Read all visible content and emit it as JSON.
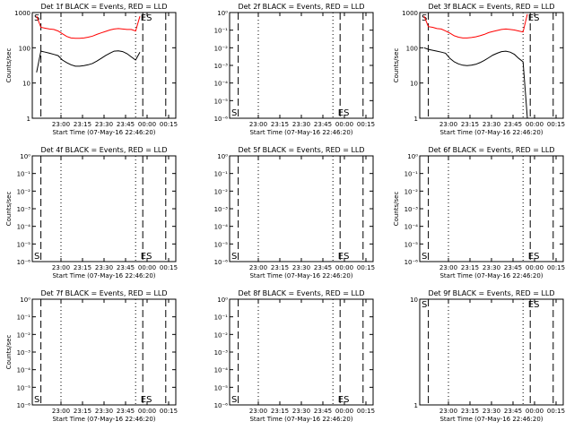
{
  "figure": {
    "background": "#ffffff",
    "ink": "#000000",
    "lld_color": "#ff0000"
  },
  "chart_data": [
    {
      "type": "line",
      "title": "Det 1f BLACK = Events, RED = LLD",
      "xlabel": "Start Time (07-May-16 22:46:20)",
      "ylabel": "Counts/sec",
      "x_ticks": [
        "23:00",
        "23:15",
        "23:30",
        "23:45",
        "00:00",
        "00:15"
      ],
      "y_scale": "log",
      "ylim": [
        1,
        1000
      ],
      "y_ticks": [
        "1",
        "10",
        "100",
        "1000"
      ],
      "markers": [
        "S",
        "ES"
      ],
      "has_data": true,
      "series": [
        {
          "color": "#ff0000",
          "values": [
            800,
            380,
            360,
            340,
            330,
            300,
            250,
            210,
            190,
            185,
            185,
            190,
            200,
            215,
            240,
            265,
            290,
            320,
            340,
            350,
            340,
            330,
            330,
            300,
            780
          ]
        },
        {
          "color": "#000000",
          "values": [
            20,
            80,
            75,
            70,
            65,
            60,
            45,
            38,
            33,
            30,
            30,
            31,
            33,
            36,
            42,
            50,
            60,
            70,
            80,
            82,
            78,
            68,
            55,
            45,
            75
          ]
        }
      ]
    },
    {
      "type": "line",
      "title": "Det 2f BLACK = Events, RED = LLD",
      "xlabel": "Start Time (07-May-16 22:46:20)",
      "ylabel": "",
      "x_ticks": [
        "23:00",
        "23:15",
        "23:30",
        "23:45",
        "00:00",
        "00:15"
      ],
      "y_scale": "log",
      "ylim": [
        1,
        1e-06
      ],
      "y_ticks": [
        "10⁻⁶",
        "10⁻⁵",
        "10⁻⁴",
        "10⁻³",
        "10⁻²",
        "10⁻¹",
        "10⁰"
      ],
      "markers": [
        "S",
        "ES"
      ],
      "has_data": false
    },
    {
      "type": "line",
      "title": "Det 3f BLACK = Events, RED = LLD",
      "xlabel": "Start Time (07-May-16 22:46:20)",
      "ylabel": "Counts/sec",
      "x_ticks": [
        "23:00",
        "23:15",
        "23:30",
        "23:45",
        "00:00",
        "00:15"
      ],
      "y_scale": "log",
      "ylim": [
        1,
        1000
      ],
      "y_ticks": [
        "1",
        "10",
        "100",
        "1000"
      ],
      "markers": [
        "S",
        "ES"
      ],
      "has_data": true,
      "series": [
        {
          "color": "#ff0000",
          "values": [
            800,
            400,
            380,
            350,
            340,
            300,
            260,
            220,
            200,
            190,
            190,
            195,
            205,
            220,
            240,
            270,
            290,
            310,
            330,
            340,
            330,
            320,
            300,
            280,
            900
          ]
        },
        {
          "color": "#000000",
          "values": [
            100,
            90,
            85,
            80,
            75,
            70,
            50,
            40,
            35,
            32,
            31,
            32,
            34,
            38,
            44,
            52,
            62,
            70,
            78,
            80,
            75,
            65,
            50,
            40,
            1
          ]
        }
      ]
    },
    {
      "type": "line",
      "title": "Det 4f BLACK = Events, RED = LLD",
      "xlabel": "Start Time (07-May-16 22:46:20)",
      "ylabel": "Counts/sec",
      "x_ticks": [
        "23:00",
        "23:15",
        "23:30",
        "23:45",
        "00:00",
        "00:15"
      ],
      "y_scale": "log",
      "ylim": [
        1,
        1e-06
      ],
      "y_ticks": [
        "10⁻⁶",
        "10⁻⁵",
        "10⁻⁴",
        "10⁻³",
        "10⁻²",
        "10⁻¹",
        "10⁰"
      ],
      "markers": [
        "S",
        "ES"
      ],
      "has_data": false
    },
    {
      "type": "line",
      "title": "Det 5f BLACK = Events, RED = LLD",
      "xlabel": "Start Time (07-May-16 22:46:20)",
      "ylabel": "",
      "x_ticks": [
        "23:00",
        "23:15",
        "23:30",
        "23:45",
        "00:00",
        "00:15"
      ],
      "y_scale": "log",
      "ylim": [
        1,
        1e-06
      ],
      "y_ticks": [
        "10⁻⁶",
        "10⁻⁵",
        "10⁻⁴",
        "10⁻³",
        "10⁻²",
        "10⁻¹",
        "10⁰"
      ],
      "markers": [
        "S",
        "ES"
      ],
      "has_data": false
    },
    {
      "type": "line",
      "title": "Det 6f BLACK = Events, RED = LLD",
      "xlabel": "Start Time (07-May-16 22:46:20)",
      "ylabel": "Counts/sec",
      "x_ticks": [
        "23:00",
        "23:15",
        "23:30",
        "23:45",
        "00:00",
        "00:15"
      ],
      "y_scale": "log",
      "ylim": [
        1,
        1e-06
      ],
      "y_ticks": [
        "10⁻⁶",
        "10⁻⁵",
        "10⁻⁴",
        "10⁻³",
        "10⁻²",
        "10⁻¹",
        "10⁰"
      ],
      "markers": [
        "S",
        "ES"
      ],
      "has_data": false
    },
    {
      "type": "line",
      "title": "Det 7f BLACK = Events, RED = LLD",
      "xlabel": "Start Time (07-May-16 22:46:20)",
      "ylabel": "Counts/sec",
      "x_ticks": [
        "23:00",
        "23:15",
        "23:30",
        "23:45",
        "00:00",
        "00:15"
      ],
      "y_scale": "log",
      "ylim": [
        1,
        1e-06
      ],
      "y_ticks": [
        "10⁻⁶",
        "10⁻⁵",
        "10⁻⁴",
        "10⁻³",
        "10⁻²",
        "10⁻¹",
        "10⁰"
      ],
      "markers": [
        "S",
        "ES"
      ],
      "has_data": false
    },
    {
      "type": "line",
      "title": "Det 8f BLACK = Events, RED = LLD",
      "xlabel": "Start Time (07-May-16 22:46:20)",
      "ylabel": "",
      "x_ticks": [
        "23:00",
        "23:15",
        "23:30",
        "23:45",
        "00:00",
        "00:15"
      ],
      "y_scale": "log",
      "ylim": [
        1,
        1e-06
      ],
      "y_ticks": [
        "10⁻⁶",
        "10⁻⁵",
        "10⁻⁴",
        "10⁻³",
        "10⁻²",
        "10⁻¹",
        "10⁰"
      ],
      "markers": [
        "S",
        "ES"
      ],
      "has_data": false
    },
    {
      "type": "line",
      "title": "Det 9f BLACK = Events, RED = LLD",
      "xlabel": "Start Time (07-May-16 22:46:20)",
      "ylabel": "",
      "x_ticks": [
        "23:00",
        "23:15",
        "23:30",
        "23:45",
        "00:00",
        "00:15"
      ],
      "y_scale": "log",
      "ylim": [
        1,
        10
      ],
      "y_ticks": [
        "1",
        "10"
      ],
      "markers": [
        "S",
        "ES"
      ],
      "has_data": false
    }
  ]
}
